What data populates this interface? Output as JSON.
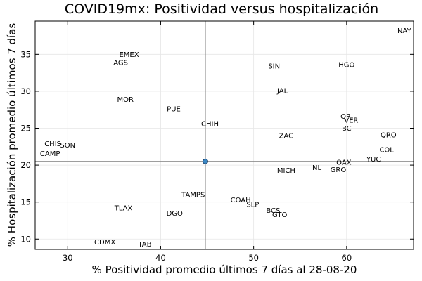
{
  "chart_data": {
    "type": "scatter",
    "title": "COVID19mx: Positividad versus hospitalización",
    "xlabel": "% Positividad promedio últimos 7 días al 28-08-20",
    "ylabel": "% Hospitalización promedio últimos 7 días",
    "xlim": [
      26.5,
      67.2
    ],
    "ylim": [
      8.6,
      39.5
    ],
    "xticks": [
      30,
      40,
      50,
      60
    ],
    "yticks": [
      10,
      15,
      20,
      25,
      30,
      35
    ],
    "grid": true,
    "legend": "none",
    "reference": {
      "x": 44.8,
      "y": 20.5
    },
    "points": [
      {
        "label": "NAY",
        "x": 66.2,
        "y": 38.2
      },
      {
        "label": "EMEX",
        "x": 36.6,
        "y": 35.0
      },
      {
        "label": "AGS",
        "x": 35.7,
        "y": 33.9
      },
      {
        "label": "SIN",
        "x": 52.2,
        "y": 33.4
      },
      {
        "label": "HGO",
        "x": 60.0,
        "y": 33.6
      },
      {
        "label": "JAL",
        "x": 53.1,
        "y": 30.1
      },
      {
        "label": "MOR",
        "x": 36.2,
        "y": 28.9
      },
      {
        "label": "PUE",
        "x": 41.4,
        "y": 27.6
      },
      {
        "label": "QR",
        "x": 59.9,
        "y": 26.6
      },
      {
        "label": "VER",
        "x": 60.5,
        "y": 26.1
      },
      {
        "label": "CHIH",
        "x": 45.3,
        "y": 25.6
      },
      {
        "label": "BC",
        "x": 60.0,
        "y": 25.0
      },
      {
        "label": "ZAC",
        "x": 53.5,
        "y": 24.0
      },
      {
        "label": "QRO",
        "x": 64.5,
        "y": 24.1
      },
      {
        "label": "CHIS",
        "x": 28.4,
        "y": 22.9
      },
      {
        "label": "SON",
        "x": 30.0,
        "y": 22.7
      },
      {
        "label": "CAMP",
        "x": 28.1,
        "y": 21.6
      },
      {
        "label": "COL",
        "x": 64.3,
        "y": 22.1
      },
      {
        "label": "YUC",
        "x": 62.9,
        "y": 20.8
      },
      {
        "label": "OAX",
        "x": 59.7,
        "y": 20.4
      },
      {
        "label": "NL",
        "x": 56.8,
        "y": 19.7
      },
      {
        "label": "GRO",
        "x": 59.1,
        "y": 19.4
      },
      {
        "label": "MICH",
        "x": 53.5,
        "y": 19.3
      },
      {
        "label": "TAMPS",
        "x": 43.5,
        "y": 16.0
      },
      {
        "label": "COAH",
        "x": 48.6,
        "y": 15.3
      },
      {
        "label": "SLP",
        "x": 49.9,
        "y": 14.7
      },
      {
        "label": "TLAX",
        "x": 36.0,
        "y": 14.2
      },
      {
        "label": "BCS",
        "x": 52.1,
        "y": 13.9
      },
      {
        "label": "DGO",
        "x": 41.5,
        "y": 13.5
      },
      {
        "label": "GTO",
        "x": 52.8,
        "y": 13.3
      },
      {
        "label": "CDMX",
        "x": 34.0,
        "y": 9.6
      },
      {
        "label": "TAB",
        "x": 38.3,
        "y": 9.3
      }
    ]
  }
}
